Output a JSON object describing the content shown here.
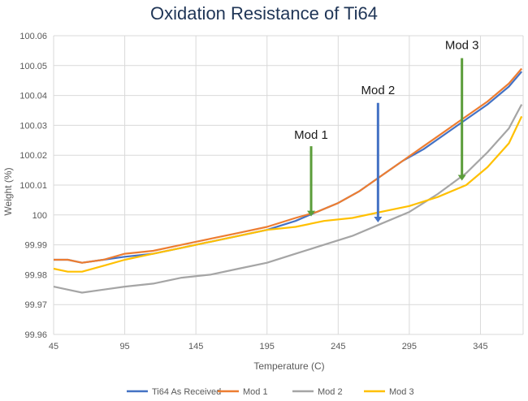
{
  "chart_data": {
    "type": "line",
    "title": "Oxidation Resistance of Ti64",
    "xlabel": "Temperature (C)",
    "ylabel": "Weight (%)",
    "xlim": [
      45,
      375
    ],
    "ylim": [
      99.96,
      100.06
    ],
    "x_ticks": [
      45,
      95,
      145,
      195,
      245,
      295,
      345
    ],
    "y_ticks": [
      99.96,
      99.97,
      99.98,
      99.99,
      100,
      100.01,
      100.02,
      100.03,
      100.04,
      100.05,
      100.06
    ],
    "y_tick_labels": [
      "99.96",
      "99.97",
      "99.98",
      "99.99",
      "100",
      "100.01",
      "100.02",
      "100.03",
      "100.04",
      "100.05",
      "100.06"
    ],
    "grid": true,
    "legend_position": "bottom",
    "series": [
      {
        "name": "Ti64 As Received",
        "color": "#4472c4",
        "points": [
          [
            45,
            99.985
          ],
          [
            55,
            99.985
          ],
          [
            65,
            99.984
          ],
          [
            80,
            99.985
          ],
          [
            95,
            99.986
          ],
          [
            115,
            99.987
          ],
          [
            135,
            99.989
          ],
          [
            155,
            99.991
          ],
          [
            175,
            99.993
          ],
          [
            195,
            99.995
          ],
          [
            215,
            99.998
          ],
          [
            230,
            100.001
          ],
          [
            245,
            100.004
          ],
          [
            260,
            100.008
          ],
          [
            275,
            100.013
          ],
          [
            290,
            100.018
          ],
          [
            305,
            100.022
          ],
          [
            320,
            100.027
          ],
          [
            335,
            100.032
          ],
          [
            350,
            100.037
          ],
          [
            365,
            100.043
          ],
          [
            374,
            100.048
          ]
        ]
      },
      {
        "name": "Mod 1",
        "color": "#ed7d31",
        "points": [
          [
            45,
            99.985
          ],
          [
            55,
            99.985
          ],
          [
            65,
            99.984
          ],
          [
            80,
            99.985
          ],
          [
            95,
            99.987
          ],
          [
            115,
            99.988
          ],
          [
            135,
            99.99
          ],
          [
            155,
            99.992
          ],
          [
            175,
            99.994
          ],
          [
            195,
            99.996
          ],
          [
            215,
            99.999
          ],
          [
            230,
            100.001
          ],
          [
            245,
            100.004
          ],
          [
            260,
            100.008
          ],
          [
            275,
            100.013
          ],
          [
            290,
            100.018
          ],
          [
            305,
            100.023
          ],
          [
            320,
            100.028
          ],
          [
            335,
            100.033
          ],
          [
            350,
            100.038
          ],
          [
            365,
            100.044
          ],
          [
            374,
            100.049
          ]
        ]
      },
      {
        "name": "Mod 2",
        "color": "#a5a5a5",
        "points": [
          [
            45,
            99.976
          ],
          [
            55,
            99.975
          ],
          [
            65,
            99.974
          ],
          [
            80,
            99.975
          ],
          [
            95,
            99.976
          ],
          [
            115,
            99.977
          ],
          [
            135,
            99.979
          ],
          [
            155,
            99.98
          ],
          [
            175,
            99.982
          ],
          [
            195,
            99.984
          ],
          [
            215,
            99.987
          ],
          [
            235,
            99.99
          ],
          [
            255,
            99.993
          ],
          [
            275,
            99.997
          ],
          [
            295,
            100.001
          ],
          [
            315,
            100.007
          ],
          [
            335,
            100.014
          ],
          [
            350,
            100.021
          ],
          [
            365,
            100.029
          ],
          [
            374,
            100.037
          ]
        ]
      },
      {
        "name": "Mod 3",
        "color": "#ffc000",
        "points": [
          [
            45,
            99.982
          ],
          [
            55,
            99.981
          ],
          [
            65,
            99.981
          ],
          [
            80,
            99.983
          ],
          [
            95,
            99.985
          ],
          [
            115,
            99.987
          ],
          [
            135,
            99.989
          ],
          [
            155,
            99.991
          ],
          [
            175,
            99.993
          ],
          [
            195,
            99.995
          ],
          [
            215,
            99.996
          ],
          [
            235,
            99.998
          ],
          [
            255,
            99.999
          ],
          [
            275,
            100.001
          ],
          [
            295,
            100.003
          ],
          [
            315,
            100.006
          ],
          [
            335,
            100.01
          ],
          [
            350,
            100.016
          ],
          [
            365,
            100.024
          ],
          [
            374,
            100.033
          ]
        ]
      }
    ],
    "annotations": [
      {
        "text": "Mod 1",
        "x": 226,
        "y_text": 100.0255,
        "y_from": 100.023,
        "y_to": 99.9995,
        "color": "#5b9d3a"
      },
      {
        "text": "Mod 2",
        "x": 273,
        "y_text": 100.0405,
        "y_from": 100.0375,
        "y_to": 99.9975,
        "color": "#4472c4"
      },
      {
        "text": "Mod 3",
        "x": 332,
        "y_text": 100.0555,
        "y_from": 100.0525,
        "y_to": 100.0115,
        "color": "#5b9d3a"
      }
    ]
  }
}
